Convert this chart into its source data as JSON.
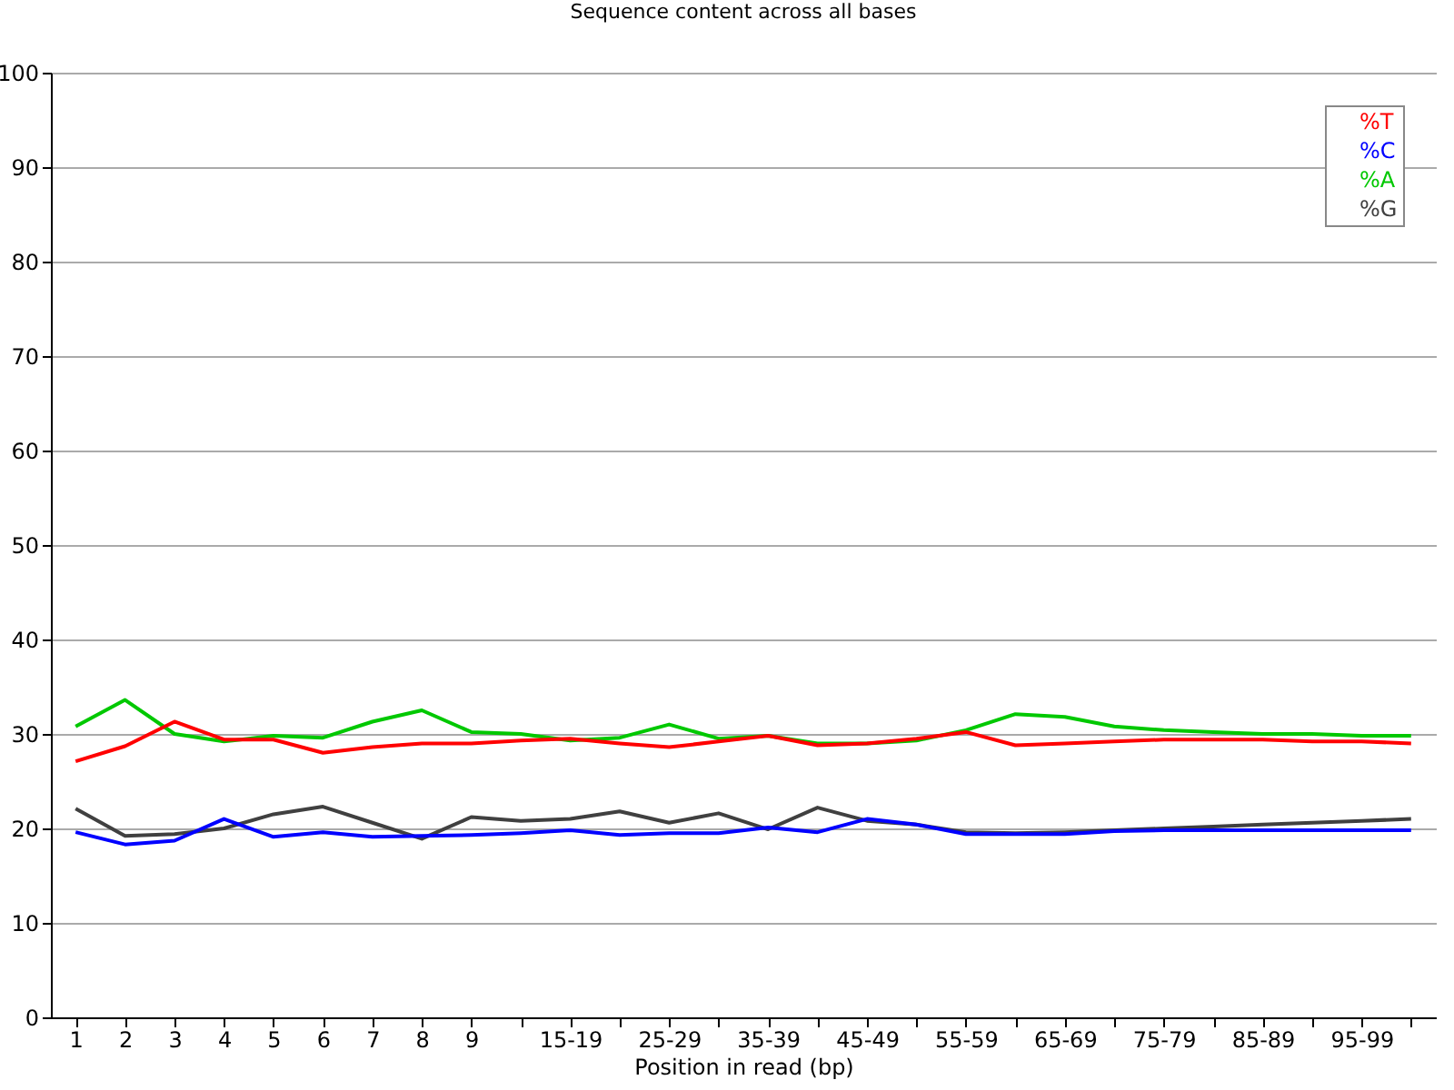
{
  "chart_data": {
    "type": "line",
    "title": "Sequence content across all bases",
    "xlabel": "Position in read (bp)",
    "categories": [
      "1",
      "2",
      "3",
      "4",
      "5",
      "6",
      "7",
      "8",
      "9",
      null,
      "15-19",
      null,
      "25-29",
      null,
      "35-39",
      null,
      "45-49",
      null,
      "55-59",
      null,
      "65-69",
      null,
      "75-79",
      null,
      "85-89",
      null,
      "95-99",
      null
    ],
    "series": [
      {
        "name": "%T",
        "color": "#ff0000",
        "values": [
          27.1,
          28.7,
          31.3,
          29.4,
          29.4,
          28.0,
          28.6,
          29.0,
          29.0,
          29.3,
          29.5,
          29.0,
          28.6,
          29.2,
          29.8,
          28.8,
          29.0,
          29.5,
          30.2,
          28.8,
          29.0,
          29.2,
          29.4,
          29.4,
          29.4,
          29.2,
          29.2,
          29.0
        ]
      },
      {
        "name": "%C",
        "color": "#0000ff",
        "values": [
          19.6,
          18.3,
          18.7,
          21.0,
          19.1,
          19.6,
          19.1,
          19.2,
          19.3,
          19.5,
          19.8,
          19.3,
          19.5,
          19.5,
          20.1,
          19.6,
          21.0,
          20.4,
          19.4,
          19.4,
          19.4,
          19.7,
          19.8,
          19.8,
          19.8,
          19.8,
          19.8,
          19.8
        ]
      },
      {
        "name": "%A",
        "color": "#00c800",
        "values": [
          30.8,
          33.6,
          30.0,
          29.2,
          29.8,
          29.6,
          31.3,
          32.5,
          30.2,
          30.0,
          29.3,
          29.6,
          31.0,
          29.5,
          29.8,
          29.0,
          29.0,
          29.3,
          30.4,
          32.1,
          31.8,
          30.8,
          30.4,
          30.2,
          30.0,
          30.0,
          29.8,
          29.8
        ]
      },
      {
        "name": "%G",
        "color": "#404040",
        "values": [
          22.1,
          19.2,
          19.4,
          20.0,
          21.5,
          22.3,
          20.6,
          18.9,
          21.2,
          20.8,
          21.0,
          21.8,
          20.6,
          21.6,
          19.9,
          22.2,
          20.8,
          20.4,
          19.6,
          19.5,
          19.6,
          19.8,
          20.0,
          20.2,
          20.4,
          20.6,
          20.8,
          21.0
        ]
      }
    ],
    "ylim": [
      0,
      100
    ],
    "yticks": [
      0,
      10,
      20,
      30,
      40,
      50,
      60,
      70,
      80,
      90,
      100
    ],
    "grid": "y",
    "legend": "top right"
  }
}
